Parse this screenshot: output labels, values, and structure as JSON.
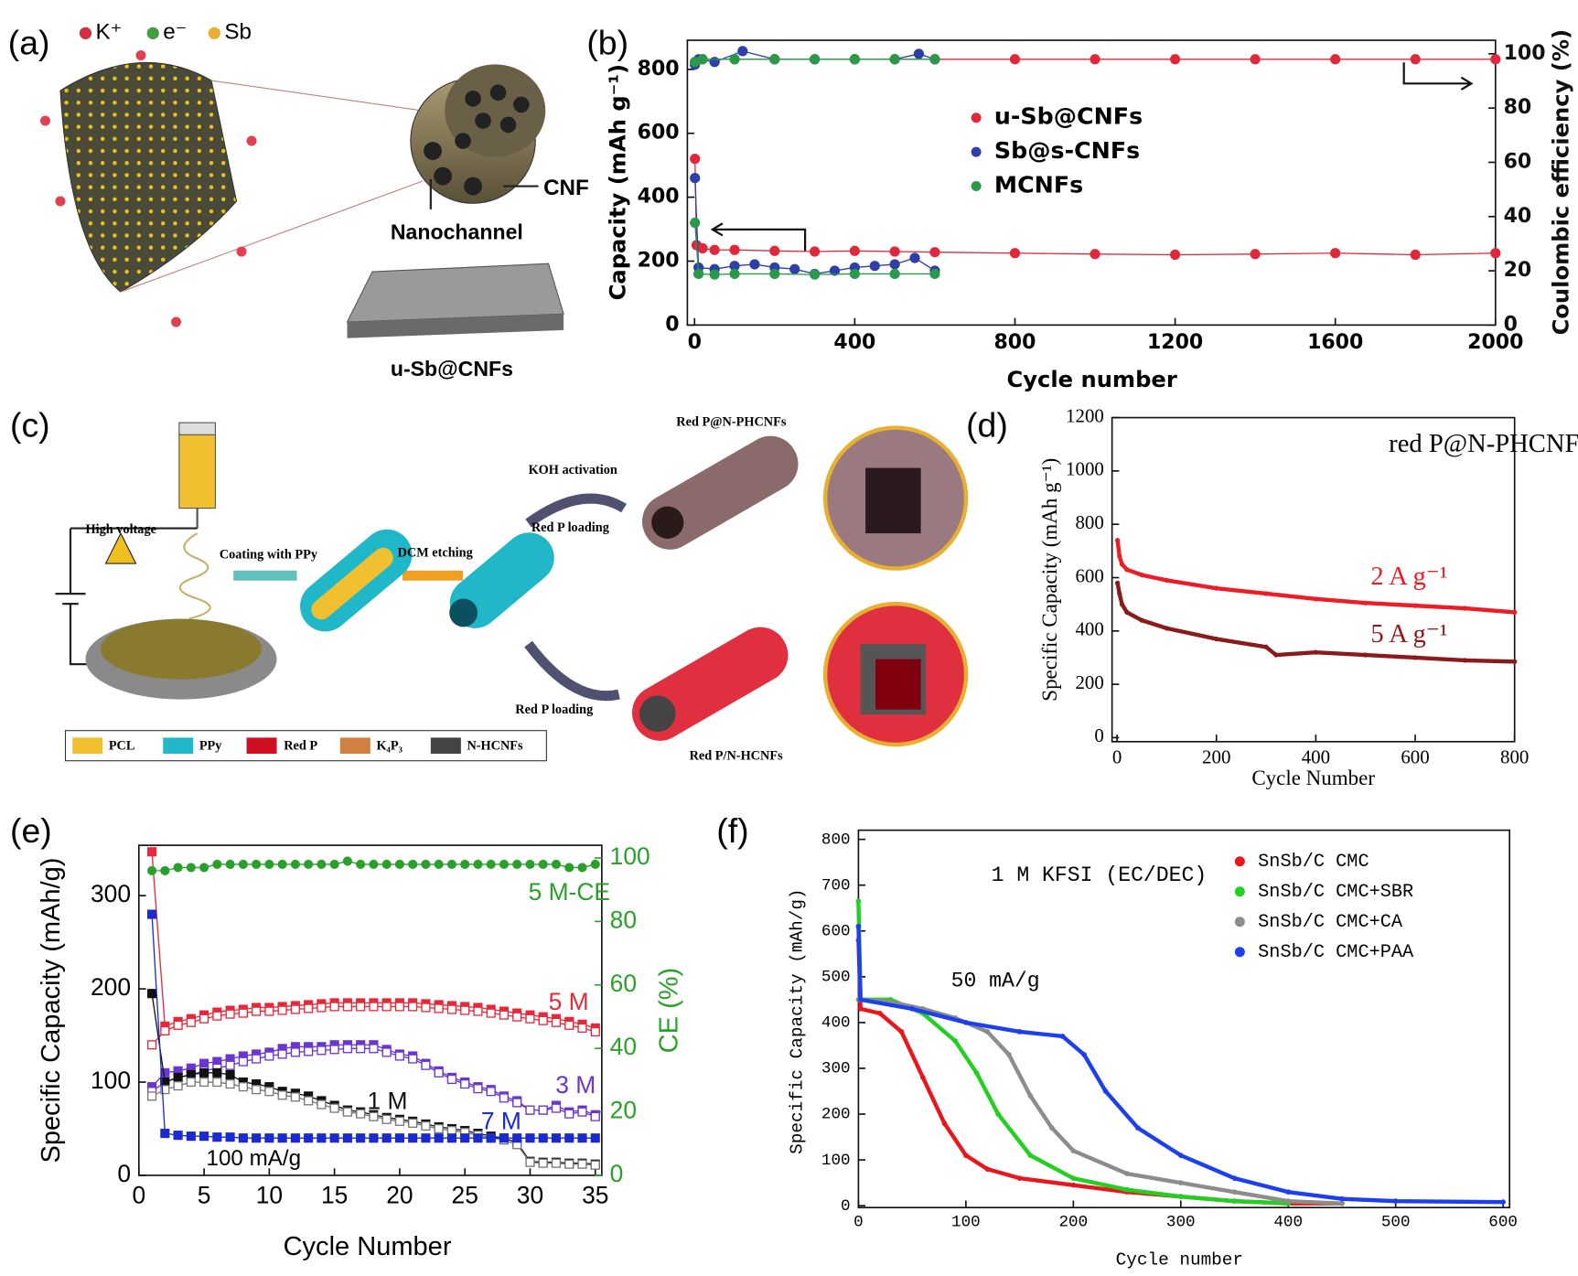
{
  "chart_data": [
    {
      "type": "scatter",
      "xlabel": "Cycle number",
      "ylabel": "Capacity (mAh g⁻¹)",
      "y2label": "Coulombic efficiency (%)",
      "xlim": [
        -18,
        2000
      ],
      "xticks": [
        0,
        400,
        800,
        1200,
        1600,
        2000
      ],
      "ylim": [
        0,
        891
      ],
      "yticks": [
        0,
        200,
        400,
        600,
        800
      ],
      "y2lim": [
        0,
        105
      ],
      "y2ticks": [
        0,
        20,
        40,
        60,
        80,
        100
      ],
      "legend": "center",
      "series": [
        {
          "name": "u-Sb@CNFs",
          "color": "#e0283a",
          "x": [
            1,
            5,
            20,
            50,
            100,
            200,
            300,
            400,
            500,
            600,
            800,
            1000,
            1200,
            1400,
            1600,
            1800,
            2000
          ],
          "values": [
            520,
            250,
            240,
            235,
            235,
            232,
            230,
            232,
            230,
            228,
            225,
            222,
            220,
            222,
            225,
            220,
            225
          ]
        },
        {
          "name": "Sb@s-CNFs",
          "color": "#2f3fa8",
          "x": [
            1,
            10,
            50,
            100,
            150,
            200,
            250,
            300,
            350,
            400,
            450,
            500,
            550,
            600
          ],
          "values": [
            460,
            180,
            175,
            185,
            190,
            180,
            175,
            160,
            170,
            180,
            185,
            190,
            210,
            170
          ]
        },
        {
          "name": "MCNFs",
          "color": "#2a9a4a",
          "x": [
            1,
            10,
            50,
            100,
            200,
            300,
            400,
            500,
            600
          ],
          "values": [
            320,
            160,
            158,
            160,
            160,
            158,
            160,
            160,
            160
          ]
        },
        {
          "color": "#e0283a",
          "axis": "y2",
          "x": [
            1,
            20,
            100,
            200,
            300,
            400,
            500,
            600,
            800,
            1000,
            1200,
            1400,
            1600,
            1800,
            2000
          ],
          "values": [
            97,
            98,
            98,
            98,
            98,
            98,
            98,
            98,
            98,
            98,
            98,
            98,
            98,
            98,
            98
          ]
        },
        {
          "color": "#2f3fa8",
          "axis": "y2",
          "x": [
            1,
            10,
            50,
            120,
            200,
            300,
            400,
            500,
            560,
            600
          ],
          "values": [
            96,
            98,
            97,
            101,
            98,
            98,
            98,
            98,
            100,
            98
          ]
        },
        {
          "color": "#2a9a4a",
          "axis": "y2",
          "x": [
            1,
            20,
            100,
            200,
            300,
            400,
            500,
            600
          ],
          "values": [
            97,
            98,
            98,
            98,
            98,
            98,
            98,
            98
          ]
        }
      ]
    },
    {
      "type": "line",
      "xlabel": "Cycle Number",
      "ylabel": "Specific Capacity (mAh g⁻¹)",
      "xlim": [
        -10,
        800
      ],
      "xticks": [
        0,
        200,
        400,
        600,
        800
      ],
      "ylim": [
        -15,
        1200
      ],
      "yticks": [
        0,
        200,
        400,
        600,
        800,
        1000,
        1200
      ],
      "annotations": [
        "red P@N-PHCNFs"
      ],
      "series": [
        {
          "name": "2 A g⁻¹",
          "color": "#ee1c24",
          "x": [
            1,
            5,
            10,
            20,
            50,
            100,
            200,
            300,
            400,
            500,
            600,
            700,
            800
          ],
          "values": [
            740,
            680,
            650,
            630,
            610,
            590,
            560,
            540,
            520,
            505,
            495,
            485,
            470
          ]
        },
        {
          "name": "5 A g⁻¹",
          "color": "#8b1a1a",
          "x": [
            1,
            5,
            10,
            20,
            50,
            100,
            200,
            300,
            320,
            400,
            500,
            600,
            700,
            800
          ],
          "values": [
            580,
            540,
            500,
            470,
            440,
            410,
            370,
            340,
            310,
            320,
            310,
            300,
            290,
            285
          ]
        }
      ]
    },
    {
      "type": "line",
      "xlabel": "Cycle Number",
      "ylabel": "Specific Capacity (mAh/g)",
      "y2label": "CE (%)",
      "xlim": [
        0,
        35.5
      ],
      "xticks": [
        0,
        5,
        10,
        15,
        20,
        25,
        30,
        35
      ],
      "ylim": [
        0,
        354
      ],
      "yticks": [
        0,
        100,
        200,
        300
      ],
      "y2lim": [
        0,
        104
      ],
      "y2ticks": [
        0,
        20,
        40,
        60,
        80,
        100
      ],
      "annotations": [
        "100 mA/g"
      ],
      "x": [
        1,
        2,
        3,
        4,
        5,
        6,
        7,
        8,
        9,
        10,
        11,
        12,
        13,
        14,
        15,
        16,
        17,
        18,
        19,
        20,
        21,
        22,
        23,
        24,
        25,
        26,
        27,
        28,
        29,
        30,
        31,
        32,
        33,
        34,
        35
      ],
      "series": [
        {
          "name": "5 M",
          "color": "#e8283a",
          "marker": "square",
          "values": [
            347,
            160,
            165,
            168,
            172,
            175,
            177,
            178,
            180,
            180,
            181,
            182,
            183,
            184,
            185,
            185,
            185,
            185,
            185,
            185,
            185,
            184,
            183,
            182,
            181,
            180,
            178,
            176,
            174,
            172,
            170,
            168,
            165,
            162,
            158
          ]
        },
        {
          "color": "#e8283a",
          "marker": "open-square",
          "values": [
            140,
            155,
            161,
            164,
            168,
            171,
            173,
            174,
            176,
            176,
            177,
            178,
            179,
            180,
            181,
            181,
            181,
            181,
            181,
            181,
            181,
            180,
            179,
            178,
            177,
            176,
            174,
            172,
            170,
            168,
            166,
            164,
            161,
            158,
            154
          ]
        },
        {
          "name": "3 M",
          "color": "#6a35d0",
          "marker": "square",
          "values": [
            95,
            110,
            112,
            115,
            120,
            122,
            125,
            128,
            130,
            132,
            136,
            138,
            138,
            138,
            140,
            140,
            140,
            140,
            135,
            130,
            128,
            120,
            112,
            105,
            100,
            95,
            92,
            85,
            80,
            70,
            70,
            75,
            68,
            70,
            65
          ]
        },
        {
          "color": "#6a35d0",
          "marker": "open-square",
          "values": [
            90,
            100,
            105,
            108,
            112,
            115,
            118,
            122,
            125,
            128,
            130,
            132,
            133,
            134,
            135,
            136,
            136,
            136,
            132,
            128,
            125,
            118,
            110,
            103,
            98,
            93,
            90,
            83,
            78,
            70,
            70,
            72,
            66,
            68,
            63
          ]
        },
        {
          "name": "1 M",
          "color": "#111111",
          "marker": "square",
          "values": [
            195,
            100,
            105,
            108,
            110,
            110,
            108,
            100,
            98,
            95,
            90,
            88,
            85,
            80,
            75,
            70,
            68,
            65,
            62,
            60,
            58,
            55,
            52,
            50,
            48,
            45,
            42,
            40,
            35,
            15,
            14,
            14,
            13,
            13,
            12
          ]
        },
        {
          "color": "#777777",
          "marker": "open-square",
          "values": [
            85,
            92,
            96,
            100,
            100,
            100,
            98,
            95,
            92,
            90,
            86,
            84,
            80,
            76,
            72,
            68,
            66,
            63,
            60,
            58,
            56,
            53,
            50,
            48,
            46,
            43,
            40,
            38,
            33,
            14,
            13,
            13,
            12,
            12,
            11
          ]
        },
        {
          "name": "7 M",
          "color": "#1a2ad0",
          "marker": "square",
          "values": [
            280,
            45,
            43,
            42,
            42,
            41,
            41,
            40,
            40,
            40,
            40,
            40,
            40,
            40,
            40,
            40,
            40,
            40,
            40,
            40,
            40,
            40,
            40,
            40,
            40,
            40,
            40,
            40,
            40,
            40,
            40,
            40,
            40,
            40,
            40
          ]
        },
        {
          "name": "5 M-CE",
          "color": "#2aa02a",
          "axis": "y2",
          "marker": "circle",
          "values": [
            96,
            96,
            97,
            97,
            97,
            98,
            98,
            98,
            98,
            98,
            98,
            98,
            98,
            98,
            98,
            99,
            98,
            98,
            98,
            98,
            98,
            98,
            98,
            98,
            98,
            98,
            98,
            98,
            98,
            98,
            98,
            98,
            97,
            97,
            98
          ]
        }
      ]
    },
    {
      "type": "line",
      "xlabel": "Cycle number",
      "ylabel": "Specific Capacity (mAh/g)",
      "xlim": [
        0,
        606
      ],
      "xticks": [
        0,
        100,
        200,
        300,
        400,
        500,
        600
      ],
      "ylim": [
        -4,
        820
      ],
      "yticks": [
        0,
        100,
        200,
        300,
        400,
        500,
        600,
        700,
        800
      ],
      "legend": "upper right",
      "annotations": [
        "1 M KFSI (EC/DEC)",
        "50 mA/g"
      ],
      "series": [
        {
          "name": "SnSb/C CMC",
          "color": "#e8171c",
          "x": [
            0,
            2,
            20,
            40,
            60,
            80,
            100,
            120,
            150,
            200,
            250,
            300,
            350,
            400,
            450
          ],
          "values": [
            580,
            430,
            420,
            380,
            280,
            180,
            110,
            80,
            60,
            45,
            30,
            20,
            10,
            5,
            5
          ]
        },
        {
          "name": "SnSb/C CMC+SBR",
          "color": "#22d022",
          "x": [
            0,
            2,
            30,
            60,
            90,
            110,
            130,
            160,
            200,
            250,
            300,
            350,
            400
          ],
          "values": [
            665,
            450,
            450,
            420,
            360,
            290,
            200,
            110,
            60,
            35,
            20,
            10,
            5
          ]
        },
        {
          "name": "SnSb/C CMC+CA",
          "color": "#8c8c8c",
          "x": [
            0,
            30,
            60,
            90,
            120,
            140,
            160,
            180,
            200,
            250,
            300,
            350,
            400,
            450
          ],
          "values": [
            450,
            445,
            430,
            410,
            380,
            330,
            240,
            170,
            120,
            70,
            50,
            30,
            10,
            5
          ]
        },
        {
          "name": "SnSb/C CMC+PAA",
          "color": "#1c3ff0",
          "x": [
            0,
            2,
            50,
            100,
            150,
            190,
            210,
            230,
            260,
            300,
            350,
            400,
            450,
            500,
            600
          ],
          "values": [
            610,
            450,
            430,
            400,
            380,
            370,
            330,
            250,
            170,
            110,
            60,
            30,
            15,
            10,
            8
          ]
        }
      ]
    }
  ],
  "diagrams": {
    "panel_labels": [
      "(a)",
      "(b)",
      "(c)",
      "(d)",
      "(e)",
      "(f)"
    ],
    "panel_a": {
      "legend": [
        "K⁺",
        "e⁻",
        "Sb"
      ],
      "labels": [
        "CNF",
        "Nanochannel",
        "u-Sb@CNFs"
      ]
    },
    "panel_c": {
      "labels": [
        "High voltage",
        "Coating with PPy",
        "DCM etching",
        "KOH activation",
        "Red P loading",
        "Red P@N-PHCNFs",
        "Red P loading",
        "Red P/N-HCNFs"
      ],
      "legend": [
        "PCL",
        "PPy",
        "Red P",
        "K₄P₃",
        "N-HCNFs"
      ]
    }
  }
}
